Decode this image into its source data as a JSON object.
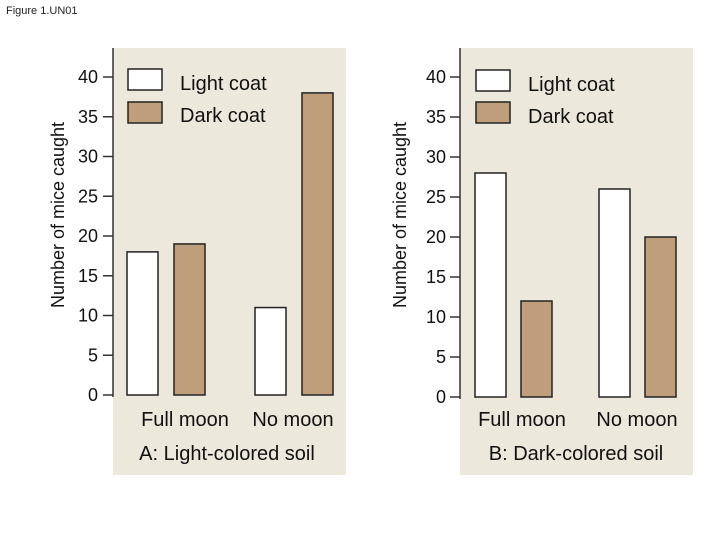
{
  "figure_label": "Figure 1.UN01",
  "colors": {
    "light": "#ffffff",
    "dark": "#bf9e7c",
    "panel": "#ece8dc"
  },
  "chart_data": [
    {
      "type": "bar",
      "title": "A: Light-colored soil",
      "ylabel": "Number of mice caught",
      "categories": [
        "Full moon",
        "No moon"
      ],
      "series": [
        {
          "name": "Light coat",
          "values": [
            18,
            11
          ]
        },
        {
          "name": "Dark coat",
          "values": [
            19,
            38
          ]
        }
      ],
      "ylim": [
        0,
        40
      ],
      "yticks": [
        "0",
        "5",
        "10",
        "15",
        "20",
        "25",
        "30",
        "35",
        "40"
      ],
      "legend": "top-right"
    },
    {
      "type": "bar",
      "title": "B: Dark-colored soil",
      "ylabel": "Number of mice caught",
      "categories": [
        "Full moon",
        "No moon"
      ],
      "series": [
        {
          "name": "Light coat",
          "values": [
            28,
            26
          ]
        },
        {
          "name": "Dark coat",
          "values": [
            12,
            20
          ]
        }
      ],
      "ylim": [
        0,
        40
      ],
      "yticks": [
        "0",
        "5",
        "10",
        "15",
        "20",
        "25",
        "30",
        "35",
        "40"
      ],
      "legend": "top-right"
    }
  ]
}
